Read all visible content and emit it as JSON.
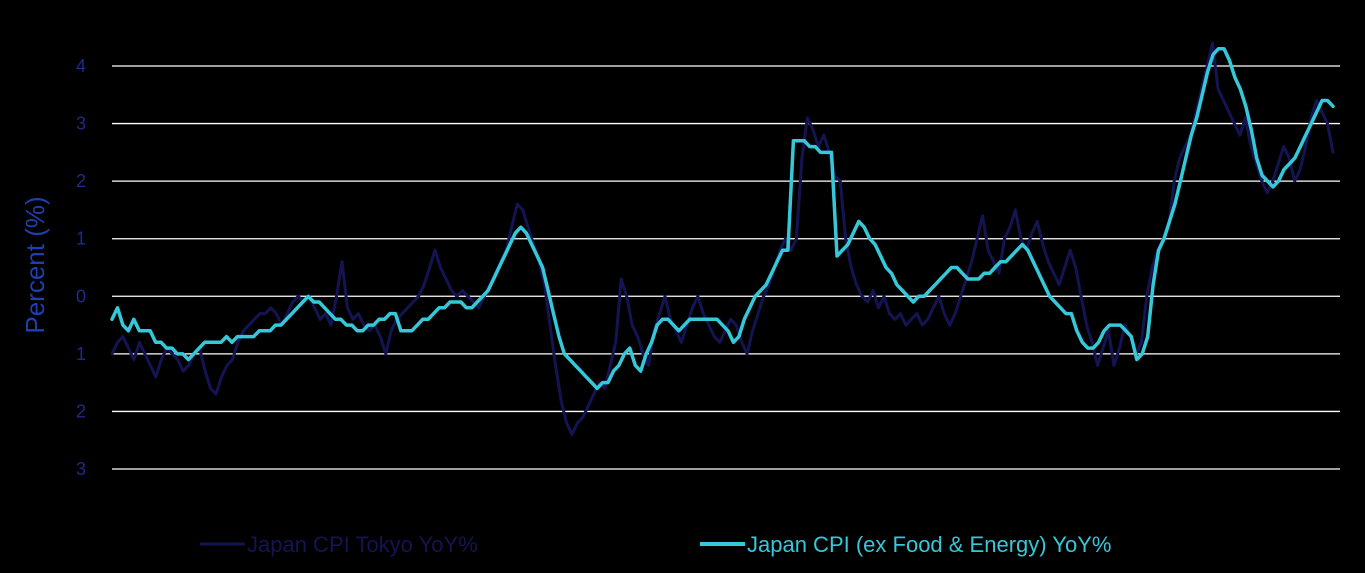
{
  "chart_data": {
    "type": "line",
    "title": "",
    "xlabel": "",
    "ylabel": "Percent (%)",
    "ylim": [
      -3,
      4
    ],
    "yticks": [
      -3,
      -2,
      -1,
      0,
      1,
      2,
      3,
      4
    ],
    "grid": true,
    "legend_position": "bottom",
    "colors": {
      "background": "#000000",
      "grid": "#ffffff",
      "axis_text": "#1f2a8a",
      "ylabel": "#1f3fb0"
    },
    "series": [
      {
        "name": "Japan CPI Tokyo YoY%",
        "color": "#141452",
        "values": [
          -1.0,
          -0.8,
          -0.7,
          -0.9,
          -1.1,
          -0.8,
          -1.0,
          -1.2,
          -1.4,
          -1.1,
          -0.9,
          -1.0,
          -1.1,
          -1.3,
          -1.2,
          -1.0,
          -0.9,
          -1.3,
          -1.6,
          -1.7,
          -1.4,
          -1.2,
          -1.1,
          -0.8,
          -0.6,
          -0.5,
          -0.4,
          -0.3,
          -0.3,
          -0.2,
          -0.3,
          -0.5,
          -0.3,
          -0.1,
          0.0,
          -0.1,
          0.0,
          -0.2,
          -0.4,
          -0.3,
          -0.5,
          0.0,
          0.6,
          -0.2,
          -0.4,
          -0.3,
          -0.5,
          -0.6,
          -0.5,
          -0.7,
          -1.0,
          -0.6,
          -0.4,
          -0.3,
          -0.2,
          -0.1,
          0.0,
          0.2,
          0.5,
          0.8,
          0.5,
          0.3,
          0.1,
          0.0,
          0.1,
          0.0,
          -0.1,
          -0.2,
          0.0,
          0.2,
          0.4,
          0.6,
          0.8,
          1.2,
          1.6,
          1.5,
          1.2,
          0.9,
          0.6,
          0.2,
          -0.5,
          -1.2,
          -1.8,
          -2.2,
          -2.4,
          -2.2,
          -2.1,
          -1.9,
          -1.7,
          -1.5,
          -1.6,
          -1.2,
          -0.8,
          0.3,
          0.0,
          -0.5,
          -0.7,
          -1.0,
          -1.2,
          -0.6,
          -0.3,
          0.0,
          -0.4,
          -0.6,
          -0.8,
          -0.5,
          -0.2,
          0.0,
          -0.3,
          -0.5,
          -0.7,
          -0.8,
          -0.6,
          -0.4,
          -0.5,
          -0.8,
          -1.0,
          -0.6,
          -0.3,
          0.0,
          0.2,
          0.5,
          0.8,
          1.0,
          0.8,
          1.0,
          2.4,
          3.1,
          2.9,
          2.6,
          2.8,
          2.5,
          2.1,
          2.0,
          1.0,
          0.5,
          0.2,
          0.0,
          -0.1,
          0.1,
          -0.2,
          0.0,
          -0.3,
          -0.4,
          -0.3,
          -0.5,
          -0.4,
          -0.3,
          -0.5,
          -0.4,
          -0.2,
          0.0,
          -0.3,
          -0.5,
          -0.3,
          0.0,
          0.3,
          0.6,
          1.0,
          1.4,
          0.8,
          0.6,
          0.4,
          1.0,
          1.2,
          1.5,
          1.0,
          0.8,
          1.1,
          1.3,
          0.9,
          0.6,
          0.4,
          0.2,
          0.5,
          0.8,
          0.5,
          0.0,
          -0.5,
          -0.8,
          -1.2,
          -0.9,
          -0.6,
          -1.2,
          -0.9,
          -0.5,
          -0.7,
          -1.0,
          -0.8,
          0.0,
          0.5,
          0.8,
          1.0,
          1.2,
          2.0,
          2.4,
          2.6,
          2.8,
          3.2,
          3.6,
          4.0,
          4.4,
          3.6,
          3.4,
          3.2,
          3.0,
          2.8,
          3.1,
          2.6,
          2.3,
          2.0,
          1.8,
          2.0,
          2.3,
          2.6,
          2.4,
          2.0,
          2.2,
          2.6,
          3.1,
          3.4,
          3.2,
          3.0,
          2.5
        ]
      },
      {
        "name": "Japan CPI (ex Food & Energy) YoY%",
        "color": "#35c8d8",
        "values": [
          -0.4,
          -0.2,
          -0.5,
          -0.6,
          -0.4,
          -0.6,
          -0.6,
          -0.6,
          -0.8,
          -0.8,
          -0.9,
          -0.9,
          -1.0,
          -1.0,
          -1.1,
          -1.0,
          -0.9,
          -0.8,
          -0.8,
          -0.8,
          -0.8,
          -0.7,
          -0.8,
          -0.7,
          -0.7,
          -0.7,
          -0.7,
          -0.6,
          -0.6,
          -0.6,
          -0.5,
          -0.5,
          -0.4,
          -0.3,
          -0.2,
          -0.1,
          0.0,
          -0.1,
          -0.1,
          -0.2,
          -0.3,
          -0.4,
          -0.4,
          -0.5,
          -0.5,
          -0.6,
          -0.6,
          -0.5,
          -0.5,
          -0.4,
          -0.4,
          -0.3,
          -0.3,
          -0.6,
          -0.6,
          -0.6,
          -0.5,
          -0.4,
          -0.4,
          -0.3,
          -0.2,
          -0.2,
          -0.1,
          -0.1,
          -0.1,
          -0.2,
          -0.2,
          -0.1,
          0.0,
          0.1,
          0.3,
          0.5,
          0.7,
          0.9,
          1.1,
          1.2,
          1.1,
          0.9,
          0.7,
          0.5,
          0.1,
          -0.3,
          -0.7,
          -1.0,
          -1.1,
          -1.2,
          -1.3,
          -1.4,
          -1.5,
          -1.6,
          -1.5,
          -1.5,
          -1.3,
          -1.2,
          -1.0,
          -0.9,
          -1.2,
          -1.3,
          -1.0,
          -0.8,
          -0.5,
          -0.4,
          -0.4,
          -0.5,
          -0.6,
          -0.5,
          -0.4,
          -0.4,
          -0.4,
          -0.4,
          -0.4,
          -0.4,
          -0.5,
          -0.6,
          -0.8,
          -0.7,
          -0.4,
          -0.2,
          0.0,
          0.1,
          0.2,
          0.4,
          0.6,
          0.8,
          0.8,
          2.7,
          2.7,
          2.7,
          2.6,
          2.6,
          2.5,
          2.5,
          2.5,
          0.7,
          0.8,
          0.9,
          1.1,
          1.3,
          1.2,
          1.0,
          0.9,
          0.7,
          0.5,
          0.4,
          0.2,
          0.1,
          0.0,
          -0.1,
          0.0,
          0.0,
          0.1,
          0.2,
          0.3,
          0.4,
          0.5,
          0.5,
          0.4,
          0.3,
          0.3,
          0.3,
          0.4,
          0.4,
          0.5,
          0.6,
          0.6,
          0.7,
          0.8,
          0.9,
          0.8,
          0.6,
          0.4,
          0.2,
          0.0,
          -0.1,
          -0.2,
          -0.3,
          -0.3,
          -0.6,
          -0.8,
          -0.9,
          -0.9,
          -0.8,
          -0.6,
          -0.5,
          -0.5,
          -0.5,
          -0.6,
          -0.7,
          -1.1,
          -1.0,
          -0.7,
          0.2,
          0.8,
          1.0,
          1.3,
          1.6,
          2.0,
          2.4,
          2.8,
          3.1,
          3.5,
          3.9,
          4.2,
          4.3,
          4.3,
          4.1,
          3.8,
          3.6,
          3.3,
          2.9,
          2.4,
          2.1,
          2.0,
          1.9,
          2.0,
          2.2,
          2.3,
          2.4,
          2.6,
          2.8,
          3.0,
          3.2,
          3.4,
          3.4,
          3.3
        ]
      }
    ]
  }
}
